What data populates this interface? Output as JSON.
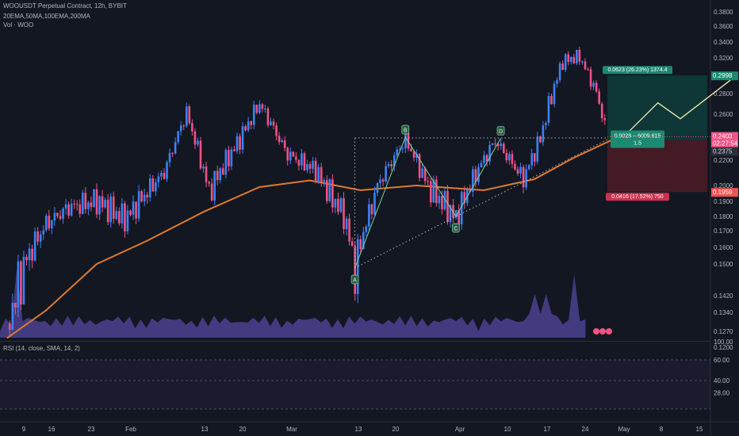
{
  "header": {
    "symbol": "WOOUSDT Perpetual Contract, 12h, BYBIT",
    "indicators": "20EMA,50MA,100EMA,200MA",
    "volume": "Vol · WOO"
  },
  "price_axis": {
    "ticks": [
      "0.3800",
      "0.3600",
      "0.3400",
      "0.3200",
      "0.3000",
      "0.2800",
      "0.2600",
      "0.2400",
      "0.2200",
      "0.2000",
      "0.1900",
      "0.1800",
      "0.1700",
      "0.1600",
      "0.1500",
      "0.1420",
      "0.1340",
      "0.1270",
      "0.1200"
    ],
    "last_price": "0.2403",
    "countdown": "02:27:54",
    "level_2375": "0.2375",
    "target_price": "0.2998",
    "stop_price": "0.1959"
  },
  "time_axis": {
    "labels": [
      "9",
      "16",
      "23",
      "Feb",
      "13",
      "20",
      "Mar",
      "13",
      "20",
      "Apr",
      "10",
      "17",
      "24",
      "May",
      "8",
      "15"
    ]
  },
  "rsi": {
    "title": "RSI (14, close, SMA, 14, 2)",
    "ticks": [
      "100.00",
      "60.00",
      "40.00",
      "28.00"
    ]
  },
  "position_tool": {
    "target_label": "0.0623 (26.23%) 1374.4",
    "center_label": "0.0028 − 6009.615",
    "ratio": "1.5",
    "stop_label": "0.0416 (17.52%) 750"
  },
  "pattern_labels": [
    "A",
    "B",
    "C",
    "D"
  ],
  "colors": {
    "background": "#131722",
    "up": "#26a69a",
    "up_candle": "#3b82f6",
    "down": "#ef5386",
    "ema": "#e07b2e",
    "rsi": "#9c27b0",
    "target_zone": "#0f3b3a",
    "stop_zone": "#4a1c25"
  },
  "chart_data": {
    "type": "candlestick",
    "timeframe": "12h",
    "ylim": [
      0.12,
      0.38
    ],
    "price_path": [
      {
        "x": "Jan 6",
        "close": 0.13
      },
      {
        "x": "Jan 9",
        "close": 0.15
      },
      {
        "x": "Jan 13",
        "close": 0.175
      },
      {
        "x": "Jan 17",
        "close": 0.186
      },
      {
        "x": "Jan 22",
        "close": 0.19
      },
      {
        "x": "Jan 27",
        "close": 0.178
      },
      {
        "x": "Feb 3",
        "close": 0.21
      },
      {
        "x": "Feb 7",
        "close": 0.262
      },
      {
        "x": "Feb 11",
        "close": 0.196
      },
      {
        "x": "Feb 16",
        "close": 0.234
      },
      {
        "x": "Feb 20",
        "close": 0.27
      },
      {
        "x": "Feb 25",
        "close": 0.225
      },
      {
        "x": "Mar 2",
        "close": 0.212
      },
      {
        "x": "Mar 4",
        "close": 0.198
      },
      {
        "x": "Mar 7",
        "close": 0.181
      },
      {
        "x": "Mar 9",
        "close": 0.15
      },
      {
        "x": "Mar 13",
        "close": 0.2
      },
      {
        "x": "Mar 18",
        "close": 0.238
      },
      {
        "x": "Mar 22",
        "close": 0.2
      },
      {
        "x": "Mar 27",
        "close": 0.179
      },
      {
        "x": "Mar 31",
        "close": 0.213
      },
      {
        "x": "Apr 3",
        "close": 0.237
      },
      {
        "x": "Apr 8",
        "close": 0.205
      },
      {
        "x": "Apr 11",
        "close": 0.238
      },
      {
        "x": "Apr 15",
        "close": 0.316
      },
      {
        "x": "Apr 18",
        "close": 0.322
      },
      {
        "x": "Apr 21",
        "close": 0.282
      },
      {
        "x": "Apr 23",
        "close": 0.24
      }
    ],
    "moving_average": [
      {
        "x": "Jan 6",
        "y": 0.124
      },
      {
        "x": "Jan 13",
        "y": 0.135
      },
      {
        "x": "Jan 22",
        "y": 0.15
      },
      {
        "x": "Jan 31",
        "y": 0.164
      },
      {
        "x": "Feb 10",
        "y": 0.183
      },
      {
        "x": "Feb 20",
        "y": 0.199
      },
      {
        "x": "Mar 1",
        "y": 0.204
      },
      {
        "x": "Mar 10",
        "y": 0.197
      },
      {
        "x": "Mar 20",
        "y": 0.2
      },
      {
        "x": "Apr 1",
        "y": 0.197
      },
      {
        "x": "Apr 10",
        "y": 0.205
      },
      {
        "x": "Apr 17",
        "y": 0.222
      },
      {
        "x": "Apr 24",
        "y": 0.238
      }
    ],
    "abcd_pattern": [
      {
        "label": "A",
        "x": "Mar 9",
        "y": 0.149
      },
      {
        "label": "B",
        "x": "Mar 18",
        "y": 0.24
      },
      {
        "label": "C",
        "x": "Mar 27",
        "y": 0.18
      },
      {
        "label": "D",
        "x": "Apr 4",
        "y": 0.239
      }
    ],
    "projection": [
      {
        "x": "Apr 24",
        "y": 0.24
      },
      {
        "x": "Apr 25",
        "y": 0.236
      },
      {
        "x": "May 2",
        "y": 0.271
      },
      {
        "x": "May 6",
        "y": 0.256
      },
      {
        "x": "May 16",
        "y": 0.2998
      }
    ],
    "rsi_ylim": [
      20,
      100
    ],
    "rsi_ticks": [
      60,
      40,
      28
    ]
  }
}
